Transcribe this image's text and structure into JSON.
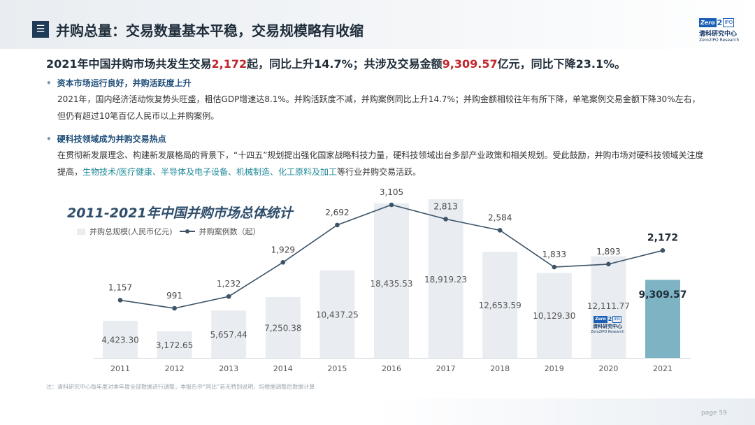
{
  "header": {
    "menu_glyph": "☰",
    "title": "并购总量：交易数量基本平稳，交易规模略有收缩",
    "logo": {
      "zero": "Zero",
      "two": "2",
      "ipo": "IPO",
      "cn": "清科研究中心",
      "en": "Zero2IPO Research"
    }
  },
  "headline": {
    "part1": "2021年中国并购市场共发生交易",
    "count": "2,172",
    "part2": "起，同比上升14.7%；共涉及交易金额",
    "amount": "9,309.57",
    "part3": "亿元，同比下降23.1%。"
  },
  "sections": [
    {
      "heading": "资本市场运行良好，并购活跃度上升",
      "text": "2021年，国内经济活动恢复势头旺盛，粗估GDP增速达8.1%。并购活跃度不减，并购案例同比上升14.7%；并购金额相较往年有所下降，单笔案例交易金额下降30%左右，但仍有超过10笔百亿人民币以上并购案例。"
    },
    {
      "heading": "硬科技领域成为并购交易热点",
      "text_a": "在贯彻新发展理念、构建新发展格局的背景下，“十四五”规划提出强化国家战略科技力量，硬科技领域出台多部产业政策和相关规划。受此鼓励，并购市场对硬科技领域关注度提高，",
      "text_b": "生物技术/医疗健康、半导体及电子设备、机械制造、化工原料及加工",
      "text_c": "等行业并购交易活跃。"
    }
  ],
  "chart_data": {
    "type": "bar",
    "title": "2011-2021年中国并购市场总体统计",
    "categories": [
      "2011",
      "2012",
      "2013",
      "2014",
      "2015",
      "2016",
      "2017",
      "2018",
      "2019",
      "2020",
      "2021"
    ],
    "series": [
      {
        "name": "并购总规模(人民币亿元)",
        "type": "bar",
        "values": [
          4423.3,
          3172.65,
          5657.44,
          7250.38,
          10437.25,
          18435.53,
          18919.23,
          12653.59,
          10129.3,
          12111.77,
          9309.57
        ],
        "labels": [
          "4,423.30",
          "3,172.65",
          "5,657.44",
          "7,250.38",
          "10,437.25",
          "18,435.53",
          "18,919.23",
          "12,653.59",
          "10,129.30",
          "12,111.77",
          "9,309.57"
        ]
      },
      {
        "name": "并购案例数（起）",
        "type": "line",
        "values": [
          1157,
          991,
          1232,
          1929,
          2692,
          3105,
          2813,
          2584,
          1833,
          1893,
          2172
        ],
        "labels": [
          "1,157",
          "991",
          "1,232",
          "1,929",
          "2,692",
          "3,105",
          "2,813",
          "2,584",
          "1,833",
          "1,893",
          "2,172"
        ]
      }
    ],
    "colors": {
      "bar": "#e9edf1",
      "bar_highlight": "#7db3c3",
      "line": "#3d5468"
    },
    "xlabel": "",
    "ylabel": ""
  },
  "chart_logo": {
    "cn": "清科研究中心",
    "en": "Zero2IPO Research"
  },
  "footnote": "注：清科研究中心每年度对本年度全部数据进行调整，本报告中“同比”若无特别说明，均根据调整后数据计算",
  "page": "page   59"
}
